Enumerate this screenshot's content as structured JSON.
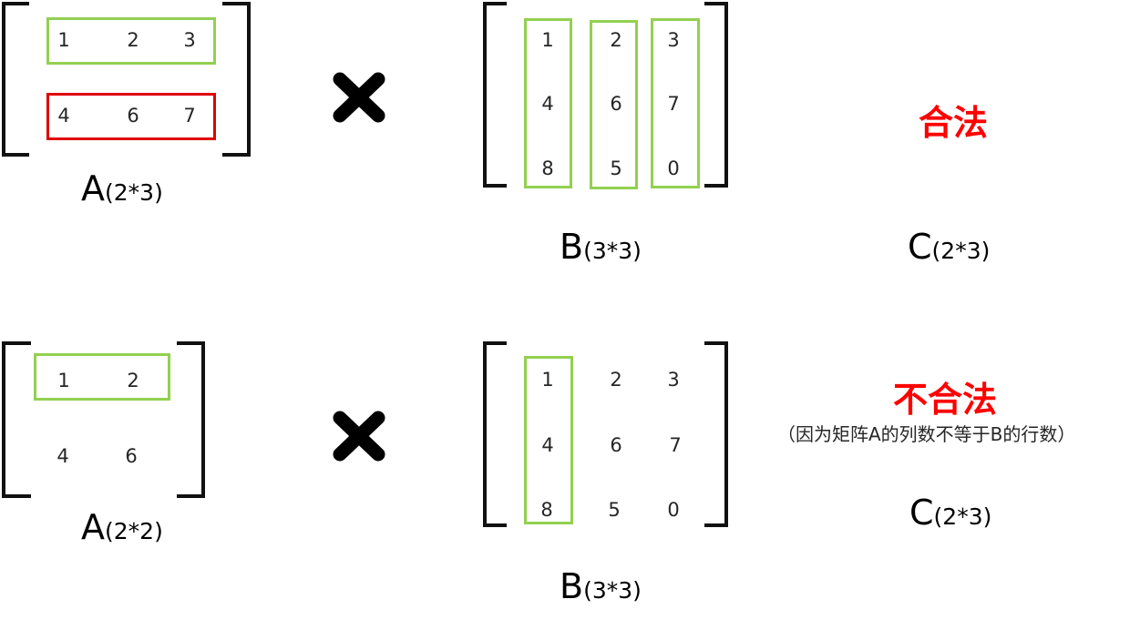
{
  "top": {
    "matrix_a": {
      "rows": [
        [
          "1",
          "2",
          "3"
        ],
        [
          "4",
          "6",
          "7"
        ]
      ],
      "label": "A",
      "dims": "(2*3)"
    },
    "operator": "multiply-icon",
    "matrix_b": {
      "rows": [
        [
          "1",
          "2",
          "3"
        ],
        [
          "4",
          "6",
          "7"
        ],
        [
          "8",
          "5",
          "0"
        ]
      ],
      "label": "B",
      "dims": "(3*3)"
    },
    "verdict": "合法",
    "result": {
      "label": "C",
      "dims": "(2*3)"
    }
  },
  "bottom": {
    "matrix_a": {
      "rows": [
        [
          "1",
          "2"
        ],
        [
          "4",
          "6"
        ]
      ],
      "label": "A",
      "dims": "(2*2)"
    },
    "operator": "multiply-icon",
    "matrix_b": {
      "rows": [
        [
          "1",
          "2",
          "3"
        ],
        [
          "4",
          "6",
          "7"
        ],
        [
          "8",
          "5",
          "0"
        ]
      ],
      "label": "B",
      "dims": "(3*3)"
    },
    "verdict": "不合法",
    "note": "（因为矩阵A的列数不等于B的行数）",
    "result": {
      "label": "C",
      "dims": "(2*3)"
    }
  },
  "colors": {
    "highlight_green": "#92d050",
    "highlight_red": "#e00000",
    "verdict_red": "#ff0000",
    "bracket": "#111111",
    "text": "#262626"
  }
}
